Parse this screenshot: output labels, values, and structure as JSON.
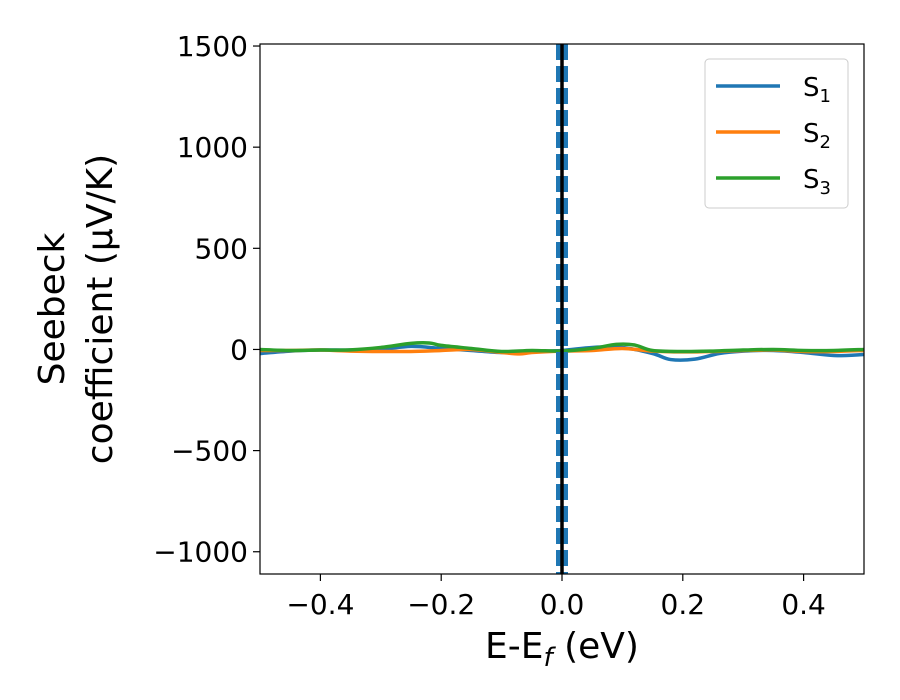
{
  "chart_data": {
    "type": "line",
    "xlabel_base": "E-E",
    "xlabel_sub": "f",
    "xlabel_unit": " (eV)",
    "ylabel_line1": "Seebeck",
    "ylabel_line2": "coefficient  (μV/K)",
    "xlim": [
      -0.5,
      0.5
    ],
    "ylim": [
      -1110,
      1510
    ],
    "xticks": [
      -0.4,
      -0.2,
      0.0,
      0.2,
      0.4
    ],
    "xtick_labels": [
      "−0.4",
      "−0.2",
      "0.0",
      "0.2",
      "0.4"
    ],
    "yticks": [
      -1000,
      -500,
      0,
      500,
      1000,
      1500
    ],
    "ytick_labels": [
      "−1000",
      "−500",
      "0",
      "500",
      "1000",
      "1500"
    ],
    "legend_position": "top-right",
    "vertical_marker": {
      "x": 0.0,
      "black_line_color": "#000000",
      "dashed_color": "#1f77b4"
    },
    "series": [
      {
        "name_base": "S",
        "name_sub": "1",
        "color": "#1f77b4",
        "x": [
          -0.5,
          -0.45,
          -0.4,
          -0.35,
          -0.3,
          -0.25,
          -0.2,
          -0.15,
          -0.12,
          -0.1,
          -0.05,
          0.0,
          0.05,
          0.1,
          0.15,
          0.18,
          0.22,
          0.26,
          0.3,
          0.35,
          0.4,
          0.45,
          0.5
        ],
        "y": [
          -20,
          -8,
          -3,
          -3,
          0,
          15,
          5,
          -5,
          -12,
          -15,
          -10,
          -5,
          10,
          10,
          -20,
          -50,
          -48,
          -20,
          -8,
          -5,
          -15,
          -30,
          -25
        ]
      },
      {
        "name_base": "S",
        "name_sub": "2",
        "color": "#ff7f0e",
        "x": [
          -0.5,
          -0.45,
          -0.4,
          -0.35,
          -0.3,
          -0.25,
          -0.2,
          -0.15,
          -0.1,
          -0.07,
          -0.05,
          0.0,
          0.05,
          0.1,
          0.15,
          0.2,
          0.25,
          0.3,
          0.35,
          0.4,
          0.45,
          0.5
        ],
        "y": [
          -5,
          -5,
          -3,
          -8,
          -10,
          -10,
          -5,
          0,
          -15,
          -22,
          -15,
          -8,
          -5,
          5,
          -8,
          -12,
          -10,
          -5,
          -3,
          -10,
          -10,
          -5
        ]
      },
      {
        "name_base": "S",
        "name_sub": "3",
        "color": "#2ca02c",
        "x": [
          -0.5,
          -0.45,
          -0.4,
          -0.35,
          -0.3,
          -0.25,
          -0.22,
          -0.2,
          -0.15,
          -0.1,
          -0.05,
          0.0,
          0.05,
          0.09,
          0.12,
          0.15,
          0.2,
          0.25,
          0.3,
          0.35,
          0.4,
          0.45,
          0.5
        ],
        "y": [
          0,
          -5,
          -3,
          -2,
          10,
          30,
          32,
          20,
          5,
          -10,
          -5,
          -8,
          5,
          25,
          22,
          -5,
          -10,
          -8,
          -3,
          0,
          -5,
          -5,
          0
        ]
      }
    ]
  }
}
